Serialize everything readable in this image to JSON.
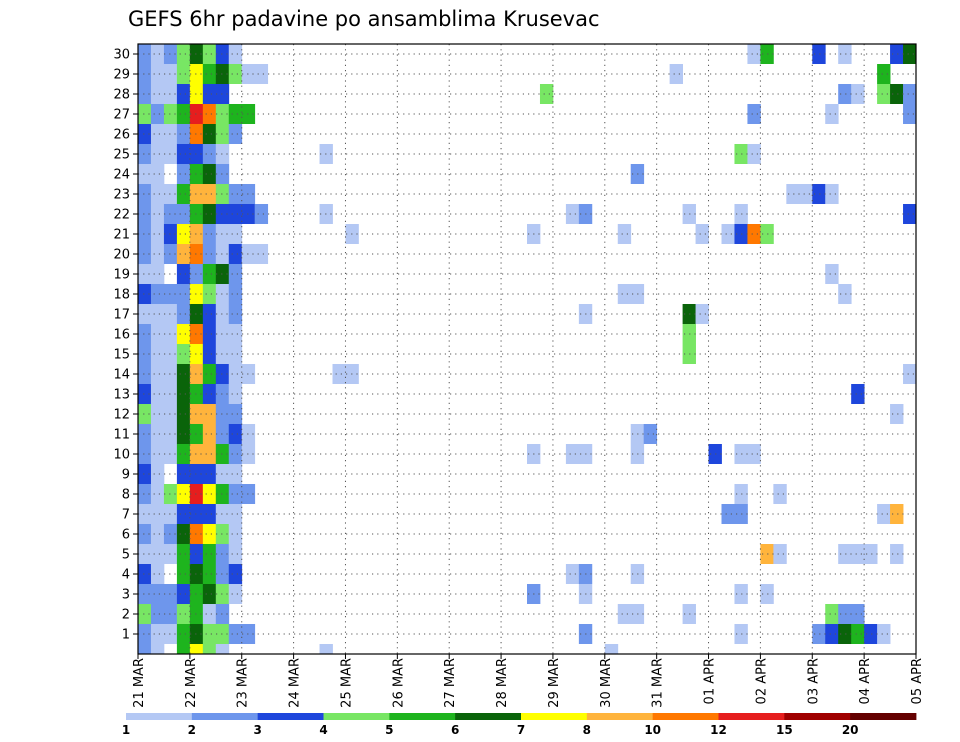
{
  "chart_data": {
    "type": "heatmap",
    "title": "GEFS 6hr padavine po ansamblima Krusevac",
    "xlabel": "",
    "ylabel": "",
    "y_members": [
      1,
      30
    ],
    "y_ticks": [
      1,
      2,
      3,
      4,
      5,
      6,
      7,
      8,
      9,
      10,
      11,
      12,
      13,
      14,
      15,
      16,
      17,
      18,
      19,
      20,
      21,
      22,
      23,
      24,
      25,
      26,
      27,
      28,
      29,
      30
    ],
    "x_ticks": [
      "21 MAR",
      "22 MAR",
      "23 MAR",
      "24 MAR",
      "25 MAR",
      "26 MAR",
      "27 MAR",
      "28 MAR",
      "29 MAR",
      "30 MAR",
      "31 MAR",
      "01 APR",
      "02 APR",
      "03 APR",
      "04 APR",
      "05 APR"
    ],
    "x_unit": "6-hour step",
    "x_range": [
      0,
      60
    ],
    "grid": true,
    "colorbar": {
      "bounds": [
        1,
        2,
        3,
        4,
        5,
        6,
        7,
        8,
        10,
        12,
        15,
        20
      ],
      "tick_labels": [
        "1",
        "2",
        "3",
        "4",
        "5",
        "6",
        "7",
        "8",
        "10",
        "12",
        "15",
        "20"
      ],
      "colors": [
        "#b4c8f4",
        "#6e96ec",
        "#1e46dc",
        "#78e664",
        "#1eb41e",
        "#0a640a",
        "#ffff00",
        "#ffb43c",
        "#ff7800",
        "#e61e1e",
        "#a00000",
        "#640000"
      ]
    },
    "cells": [
      [
        30,
        0,
        2
      ],
      [
        30,
        1,
        1
      ],
      [
        30,
        2,
        2
      ],
      [
        30,
        3,
        4
      ],
      [
        30,
        4,
        6
      ],
      [
        30,
        5,
        4
      ],
      [
        30,
        6,
        3
      ],
      [
        30,
        7,
        1
      ],
      [
        30,
        47,
        1
      ],
      [
        30,
        48,
        5
      ],
      [
        30,
        52,
        3
      ],
      [
        30,
        54,
        1
      ],
      [
        30,
        58,
        3
      ],
      [
        30,
        59,
        6
      ],
      [
        29,
        0,
        2
      ],
      [
        29,
        1,
        1
      ],
      [
        29,
        2,
        1
      ],
      [
        29,
        3,
        4
      ],
      [
        29,
        4,
        7
      ],
      [
        29,
        5,
        5
      ],
      [
        29,
        6,
        6
      ],
      [
        29,
        7,
        4
      ],
      [
        29,
        8,
        1
      ],
      [
        29,
        9,
        1
      ],
      [
        29,
        41,
        1
      ],
      [
        29,
        57,
        5
      ],
      [
        28,
        0,
        2
      ],
      [
        28,
        1,
        1
      ],
      [
        28,
        2,
        1
      ],
      [
        28,
        3,
        3
      ],
      [
        28,
        4,
        7
      ],
      [
        28,
        5,
        3
      ],
      [
        28,
        6,
        3
      ],
      [
        28,
        31,
        4
      ],
      [
        28,
        54,
        2
      ],
      [
        28,
        55,
        1
      ],
      [
        28,
        57,
        4
      ],
      [
        28,
        58,
        6
      ],
      [
        28,
        59,
        2
      ],
      [
        27,
        0,
        4
      ],
      [
        27,
        1,
        2
      ],
      [
        27,
        2,
        4
      ],
      [
        27,
        3,
        5
      ],
      [
        27,
        4,
        10
      ],
      [
        27,
        5,
        9
      ],
      [
        27,
        6,
        4
      ],
      [
        27,
        7,
        5
      ],
      [
        27,
        8,
        5
      ],
      [
        27,
        47,
        2
      ],
      [
        27,
        53,
        1
      ],
      [
        27,
        59,
        2
      ],
      [
        26,
        0,
        3
      ],
      [
        26,
        1,
        1
      ],
      [
        26,
        2,
        1
      ],
      [
        26,
        3,
        2
      ],
      [
        26,
        4,
        9
      ],
      [
        26,
        5,
        6
      ],
      [
        26,
        6,
        4
      ],
      [
        26,
        7,
        2
      ],
      [
        25,
        0,
        2
      ],
      [
        25,
        1,
        1
      ],
      [
        25,
        2,
        1
      ],
      [
        25,
        3,
        3
      ],
      [
        25,
        4,
        3
      ],
      [
        25,
        5,
        2
      ],
      [
        25,
        6,
        1
      ],
      [
        25,
        14,
        1
      ],
      [
        25,
        46,
        4
      ],
      [
        25,
        47,
        1
      ],
      [
        24,
        0,
        1
      ],
      [
        24,
        1,
        1
      ],
      [
        24,
        3,
        2
      ],
      [
        24,
        4,
        5
      ],
      [
        24,
        5,
        6
      ],
      [
        24,
        6,
        2
      ],
      [
        24,
        38,
        2
      ],
      [
        23,
        0,
        2
      ],
      [
        23,
        1,
        1
      ],
      [
        23,
        2,
        1
      ],
      [
        23,
        3,
        5
      ],
      [
        23,
        4,
        8
      ],
      [
        23,
        5,
        8
      ],
      [
        23,
        6,
        4
      ],
      [
        23,
        7,
        2
      ],
      [
        23,
        8,
        2
      ],
      [
        23,
        50,
        1
      ],
      [
        23,
        51,
        1
      ],
      [
        23,
        52,
        3
      ],
      [
        23,
        53,
        1
      ],
      [
        22,
        0,
        2
      ],
      [
        22,
        1,
        1
      ],
      [
        22,
        2,
        2
      ],
      [
        22,
        3,
        2
      ],
      [
        22,
        4,
        5
      ],
      [
        22,
        5,
        6
      ],
      [
        22,
        6,
        3
      ],
      [
        22,
        7,
        3
      ],
      [
        22,
        8,
        3
      ],
      [
        22,
        9,
        2
      ],
      [
        22,
        14,
        1
      ],
      [
        22,
        33,
        1
      ],
      [
        22,
        34,
        2
      ],
      [
        22,
        42,
        1
      ],
      [
        22,
        46,
        1
      ],
      [
        22,
        59,
        3
      ],
      [
        21,
        0,
        2
      ],
      [
        21,
        1,
        1
      ],
      [
        21,
        2,
        3
      ],
      [
        21,
        3,
        7
      ],
      [
        21,
        4,
        8
      ],
      [
        21,
        5,
        2
      ],
      [
        21,
        6,
        1
      ],
      [
        21,
        7,
        1
      ],
      [
        21,
        16,
        1
      ],
      [
        21,
        30,
        1
      ],
      [
        21,
        37,
        1
      ],
      [
        21,
        43,
        1
      ],
      [
        21,
        45,
        1
      ],
      [
        21,
        46,
        3
      ],
      [
        21,
        47,
        9
      ],
      [
        21,
        48,
        4
      ],
      [
        20,
        0,
        2
      ],
      [
        20,
        1,
        1
      ],
      [
        20,
        2,
        2
      ],
      [
        20,
        3,
        8
      ],
      [
        20,
        4,
        9
      ],
      [
        20,
        5,
        2
      ],
      [
        20,
        6,
        1
      ],
      [
        20,
        7,
        3
      ],
      [
        20,
        8,
        1
      ],
      [
        20,
        9,
        1
      ],
      [
        19,
        0,
        1
      ],
      [
        19,
        1,
        1
      ],
      [
        19,
        3,
        3
      ],
      [
        19,
        4,
        2
      ],
      [
        19,
        5,
        5
      ],
      [
        19,
        6,
        6
      ],
      [
        19,
        7,
        2
      ],
      [
        19,
        53,
        1
      ],
      [
        18,
        0,
        3
      ],
      [
        18,
        1,
        2
      ],
      [
        18,
        2,
        2
      ],
      [
        18,
        3,
        2
      ],
      [
        18,
        4,
        7
      ],
      [
        18,
        5,
        4
      ],
      [
        18,
        6,
        1
      ],
      [
        18,
        7,
        2
      ],
      [
        18,
        37,
        1
      ],
      [
        18,
        38,
        1
      ],
      [
        18,
        54,
        1
      ],
      [
        17,
        0,
        1
      ],
      [
        17,
        1,
        1
      ],
      [
        17,
        2,
        1
      ],
      [
        17,
        3,
        2
      ],
      [
        17,
        4,
        6
      ],
      [
        17,
        5,
        3
      ],
      [
        17,
        6,
        1
      ],
      [
        17,
        7,
        2
      ],
      [
        17,
        34,
        1
      ],
      [
        17,
        42,
        6
      ],
      [
        17,
        43,
        1
      ],
      [
        16,
        0,
        2
      ],
      [
        16,
        1,
        1
      ],
      [
        16,
        2,
        1
      ],
      [
        16,
        3,
        7
      ],
      [
        16,
        4,
        9
      ],
      [
        16,
        5,
        3
      ],
      [
        16,
        6,
        1
      ],
      [
        16,
        7,
        1
      ],
      [
        16,
        42,
        4
      ],
      [
        15,
        0,
        2
      ],
      [
        15,
        1,
        1
      ],
      [
        15,
        2,
        1
      ],
      [
        15,
        3,
        4
      ],
      [
        15,
        4,
        7
      ],
      [
        15,
        5,
        3
      ],
      [
        15,
        6,
        1
      ],
      [
        15,
        7,
        1
      ],
      [
        15,
        42,
        4
      ],
      [
        14,
        0,
        2
      ],
      [
        14,
        1,
        1
      ],
      [
        14,
        2,
        1
      ],
      [
        14,
        3,
        6
      ],
      [
        14,
        4,
        8
      ],
      [
        14,
        5,
        5
      ],
      [
        14,
        6,
        3
      ],
      [
        14,
        7,
        1
      ],
      [
        14,
        8,
        1
      ],
      [
        14,
        15,
        1
      ],
      [
        14,
        16,
        1
      ],
      [
        14,
        59,
        1
      ],
      [
        13,
        0,
        3
      ],
      [
        13,
        1,
        1
      ],
      [
        13,
        2,
        1
      ],
      [
        13,
        3,
        6
      ],
      [
        13,
        4,
        5
      ],
      [
        13,
        5,
        3
      ],
      [
        13,
        6,
        2
      ],
      [
        13,
        7,
        1
      ],
      [
        13,
        55,
        3
      ],
      [
        12,
        0,
        4
      ],
      [
        12,
        1,
        1
      ],
      [
        12,
        2,
        1
      ],
      [
        12,
        3,
        6
      ],
      [
        12,
        4,
        8
      ],
      [
        12,
        5,
        8
      ],
      [
        12,
        6,
        2
      ],
      [
        12,
        7,
        2
      ],
      [
        12,
        58,
        1
      ],
      [
        11,
        0,
        2
      ],
      [
        11,
        1,
        1
      ],
      [
        11,
        2,
        1
      ],
      [
        11,
        3,
        6
      ],
      [
        11,
        4,
        5
      ],
      [
        11,
        5,
        8
      ],
      [
        11,
        6,
        2
      ],
      [
        11,
        7,
        3
      ],
      [
        11,
        8,
        1
      ],
      [
        11,
        38,
        1
      ],
      [
        11,
        39,
        2
      ],
      [
        10,
        0,
        2
      ],
      [
        10,
        1,
        1
      ],
      [
        10,
        2,
        1
      ],
      [
        10,
        3,
        5
      ],
      [
        10,
        4,
        8
      ],
      [
        10,
        5,
        8
      ],
      [
        10,
        6,
        5
      ],
      [
        10,
        7,
        2
      ],
      [
        10,
        8,
        1
      ],
      [
        10,
        30,
        1
      ],
      [
        10,
        33,
        1
      ],
      [
        10,
        34,
        1
      ],
      [
        10,
        38,
        1
      ],
      [
        10,
        44,
        3
      ],
      [
        10,
        46,
        1
      ],
      [
        10,
        47,
        1
      ],
      [
        9,
        0,
        3
      ],
      [
        9,
        1,
        1
      ],
      [
        9,
        3,
        3
      ],
      [
        9,
        4,
        3
      ],
      [
        9,
        5,
        3
      ],
      [
        9,
        6,
        1
      ],
      [
        9,
        7,
        1
      ],
      [
        8,
        0,
        2
      ],
      [
        8,
        1,
        1
      ],
      [
        8,
        2,
        4
      ],
      [
        8,
        3,
        7
      ],
      [
        8,
        4,
        10
      ],
      [
        8,
        5,
        7
      ],
      [
        8,
        6,
        5
      ],
      [
        8,
        7,
        2
      ],
      [
        8,
        8,
        2
      ],
      [
        8,
        46,
        1
      ],
      [
        8,
        49,
        1
      ],
      [
        7,
        0,
        1
      ],
      [
        7,
        1,
        1
      ],
      [
        7,
        2,
        1
      ],
      [
        7,
        3,
        3
      ],
      [
        7,
        4,
        3
      ],
      [
        7,
        5,
        3
      ],
      [
        7,
        6,
        1
      ],
      [
        7,
        7,
        1
      ],
      [
        7,
        45,
        2
      ],
      [
        7,
        46,
        2
      ],
      [
        7,
        57,
        1
      ],
      [
        7,
        58,
        8
      ],
      [
        6,
        0,
        2
      ],
      [
        6,
        1,
        1
      ],
      [
        6,
        2,
        2
      ],
      [
        6,
        3,
        6
      ],
      [
        6,
        4,
        9
      ],
      [
        6,
        5,
        7
      ],
      [
        6,
        6,
        4
      ],
      [
        6,
        7,
        1
      ],
      [
        5,
        0,
        1
      ],
      [
        5,
        1,
        1
      ],
      [
        5,
        2,
        1
      ],
      [
        5,
        3,
        5
      ],
      [
        5,
        4,
        3
      ],
      [
        5,
        5,
        5
      ],
      [
        5,
        6,
        2
      ],
      [
        5,
        7,
        1
      ],
      [
        5,
        48,
        8
      ],
      [
        5,
        49,
        1
      ],
      [
        5,
        54,
        1
      ],
      [
        5,
        55,
        1
      ],
      [
        5,
        56,
        1
      ],
      [
        5,
        58,
        1
      ],
      [
        4,
        0,
        3
      ],
      [
        4,
        1,
        1
      ],
      [
        4,
        3,
        5
      ],
      [
        4,
        4,
        6
      ],
      [
        4,
        5,
        5
      ],
      [
        4,
        6,
        2
      ],
      [
        4,
        7,
        3
      ],
      [
        4,
        33,
        1
      ],
      [
        4,
        34,
        2
      ],
      [
        4,
        38,
        1
      ],
      [
        3,
        0,
        2
      ],
      [
        3,
        1,
        2
      ],
      [
        3,
        2,
        2
      ],
      [
        3,
        3,
        3
      ],
      [
        3,
        4,
        5
      ],
      [
        3,
        5,
        6
      ],
      [
        3,
        6,
        4
      ],
      [
        3,
        7,
        1
      ],
      [
        3,
        30,
        2
      ],
      [
        3,
        34,
        1
      ],
      [
        3,
        46,
        1
      ],
      [
        3,
        48,
        1
      ],
      [
        2,
        0,
        4
      ],
      [
        2,
        1,
        2
      ],
      [
        2,
        2,
        2
      ],
      [
        2,
        3,
        4
      ],
      [
        2,
        4,
        5
      ],
      [
        2,
        5,
        1
      ],
      [
        2,
        6,
        2
      ],
      [
        2,
        37,
        1
      ],
      [
        2,
        38,
        1
      ],
      [
        2,
        42,
        1
      ],
      [
        2,
        53,
        4
      ],
      [
        2,
        54,
        2
      ],
      [
        2,
        55,
        2
      ],
      [
        1,
        0,
        2
      ],
      [
        1,
        1,
        1
      ],
      [
        1,
        2,
        1
      ],
      [
        1,
        3,
        5
      ],
      [
        1,
        4,
        6
      ],
      [
        1,
        5,
        4
      ],
      [
        1,
        6,
        4
      ],
      [
        1,
        7,
        2
      ],
      [
        1,
        8,
        2
      ],
      [
        1,
        34,
        2
      ],
      [
        1,
        46,
        1
      ],
      [
        1,
        52,
        2
      ],
      [
        1,
        53,
        3
      ],
      [
        1,
        54,
        6
      ],
      [
        1,
        55,
        5
      ],
      [
        1,
        56,
        3
      ],
      [
        1,
        57,
        1
      ],
      [
        0,
        0,
        2
      ],
      [
        0,
        1,
        1
      ],
      [
        0,
        3,
        5
      ],
      [
        0,
        4,
        7
      ],
      [
        0,
        5,
        4
      ],
      [
        0,
        6,
        1
      ],
      [
        0,
        14,
        1
      ],
      [
        0,
        36,
        1
      ]
    ]
  }
}
